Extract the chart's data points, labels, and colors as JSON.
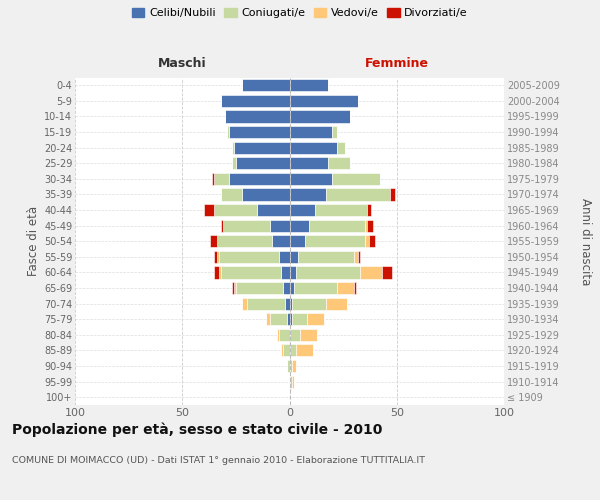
{
  "age_groups": [
    "100+",
    "95-99",
    "90-94",
    "85-89",
    "80-84",
    "75-79",
    "70-74",
    "65-69",
    "60-64",
    "55-59",
    "50-54",
    "45-49",
    "40-44",
    "35-39",
    "30-34",
    "25-29",
    "20-24",
    "15-19",
    "10-14",
    "5-9",
    "0-4"
  ],
  "birth_years": [
    "≤ 1909",
    "1910-1914",
    "1915-1919",
    "1920-1924",
    "1925-1929",
    "1930-1934",
    "1935-1939",
    "1940-1944",
    "1945-1949",
    "1950-1954",
    "1955-1959",
    "1960-1964",
    "1965-1969",
    "1970-1974",
    "1975-1979",
    "1980-1984",
    "1985-1989",
    "1990-1994",
    "1995-1999",
    "2000-2004",
    "2005-2009"
  ],
  "males_celibi": [
    0,
    0,
    0,
    0,
    0,
    1,
    2,
    3,
    4,
    5,
    8,
    9,
    15,
    22,
    28,
    25,
    26,
    28,
    30,
    32,
    22
  ],
  "males_coniugati": [
    0,
    0,
    1,
    3,
    5,
    8,
    18,
    22,
    28,
    28,
    26,
    22,
    20,
    10,
    7,
    2,
    1,
    1,
    0,
    0,
    0
  ],
  "males_vedovi": [
    0,
    0,
    0,
    1,
    1,
    2,
    2,
    1,
    1,
    1,
    0,
    0,
    0,
    0,
    0,
    0,
    0,
    0,
    0,
    0,
    0
  ],
  "males_divorziati": [
    0,
    0,
    0,
    0,
    0,
    0,
    0,
    1,
    2,
    1,
    3,
    1,
    5,
    0,
    1,
    0,
    0,
    0,
    0,
    0,
    0
  ],
  "females_nubili": [
    0,
    0,
    0,
    0,
    0,
    1,
    1,
    2,
    3,
    4,
    7,
    9,
    12,
    17,
    20,
    18,
    22,
    20,
    28,
    32,
    18
  ],
  "females_coniugate": [
    0,
    1,
    1,
    3,
    5,
    7,
    16,
    20,
    30,
    26,
    28,
    26,
    24,
    30,
    22,
    10,
    4,
    2,
    0,
    0,
    0
  ],
  "females_vedove": [
    0,
    1,
    2,
    8,
    8,
    8,
    10,
    8,
    10,
    2,
    2,
    1,
    0,
    0,
    0,
    0,
    0,
    0,
    0,
    0,
    0
  ],
  "females_divorziate": [
    0,
    0,
    0,
    0,
    0,
    0,
    0,
    1,
    5,
    1,
    3,
    3,
    2,
    2,
    0,
    0,
    0,
    0,
    0,
    0,
    0
  ],
  "color_celibi": "#4a72b0",
  "color_coniugati": "#c5d9a0",
  "color_vedovi": "#ffc878",
  "color_divorziati": "#cc1100",
  "xlim": 100,
  "title": "Popolazione per età, sesso e stato civile - 2010",
  "subtitle": "COMUNE DI MOIMACCO (UD) - Dati ISTAT 1° gennaio 2010 - Elaborazione TUTTITALIA.IT",
  "ylabel_left": "Fasce di età",
  "ylabel_right": "Anni di nascita",
  "label_maschi": "Maschi",
  "label_femmine": "Femmine",
  "bg_color": "#f0f0f0",
  "plot_bg": "#ffffff",
  "legend_labels": [
    "Celibi/Nubili",
    "Coniugati/e",
    "Vedovi/e",
    "Divorziati/e"
  ]
}
